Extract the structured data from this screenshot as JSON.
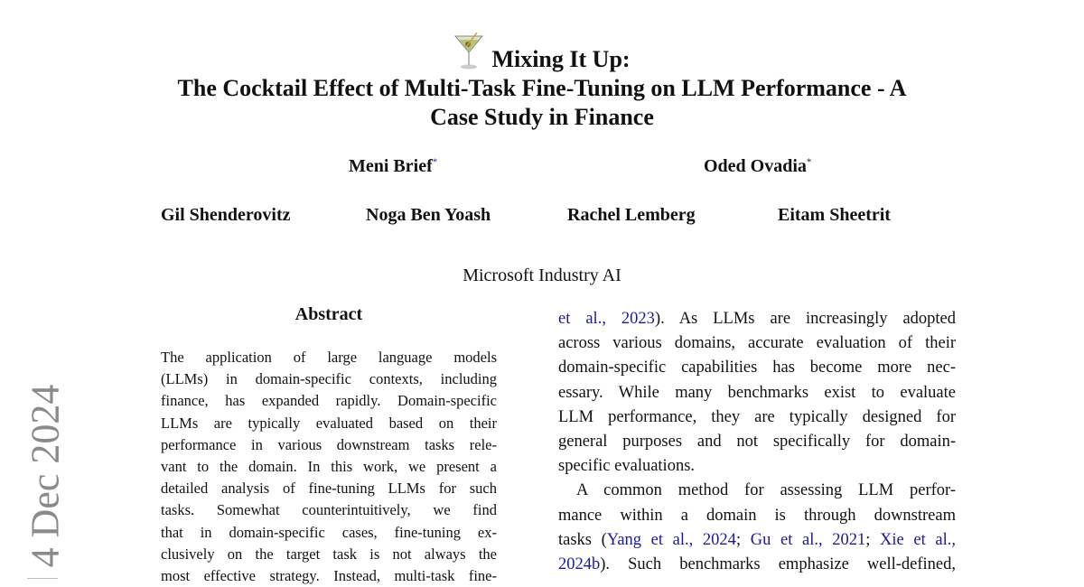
{
  "title": {
    "icon": "cocktail-glass-icon",
    "line1": "Mixing It Up:",
    "line2": "The Cocktail Effect of Multi-Task Fine-Tuning on LLM Performance - A",
    "line3": "Case Study in Finance"
  },
  "authors": {
    "row1": [
      {
        "name": "Meni Brief",
        "mark": "*"
      },
      {
        "name": "Oded Ovadia",
        "mark": "*"
      }
    ],
    "row2": [
      "Gil Shenderovitz",
      "Noga Ben Yoash",
      "Rachel Lemberg",
      "Eitam Sheetrit"
    ]
  },
  "affiliation": "Microsoft Industry AI",
  "side_stamp": "4 Dec 2024",
  "abstract": {
    "heading": "Abstract",
    "lines": [
      "The application of large language models",
      "(LLMs) in domain-specific contexts, including",
      "finance, has expanded rapidly. Domain-specific",
      "LLMs are typically evaluated based on their",
      "performance in various downstream tasks rele-",
      "vant to the domain. In this work, we present a",
      "detailed analysis of fine-tuning LLMs for such",
      "tasks.  Somewhat counterintuitively, we find",
      "that in domain-specific cases, fine-tuning ex-",
      "clusively on the target task is not always the",
      "most effective strategy. Instead, multi-task fine-"
    ]
  },
  "intro": {
    "p1": {
      "l1_cite": "et al., 2023",
      "l1_rest": ").  As LLMs are increasingly adopted",
      "lines": [
        "across various domains, accurate evaluation of their",
        "domain-specific capabilities has become more nec-",
        "essary. While many benchmarks exist to evaluate",
        "LLM performance, they are typically designed for",
        "general purposes and not specifically for domain-",
        "specific evaluations."
      ]
    },
    "p2": {
      "l1": "A common method for assessing LLM perfor-",
      "l2": "mance within a domain is through downstream",
      "l3_pre": "tasks (",
      "cite1": "Yang et al., 2024",
      "sep1": "; ",
      "cite2": "Gu et al., 2021",
      "sep2": "; ",
      "cite3": "Xie et al.,",
      "cite3b": "2024b",
      "l4_rest": "). Such benchmarks emphasize well-defined,"
    }
  },
  "colors": {
    "link": "#1a1a9a",
    "stamp": "#8a8a8a",
    "text": "#111111"
  }
}
